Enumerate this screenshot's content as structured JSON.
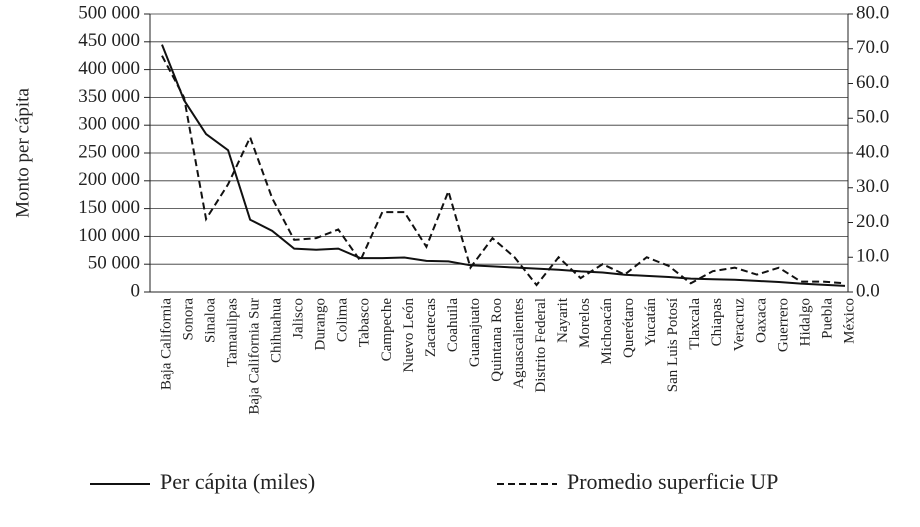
{
  "chart_data": {
    "type": "line",
    "y_label": "Monto per cápita",
    "categories": [
      "Baja California",
      "Sonora",
      "Sinaloa",
      "Tamaulipas",
      "Baja California Sur",
      "Chihuahua",
      "Jalisco",
      "Durango",
      "Colima",
      "Tabasco",
      "Campeche",
      "Nuevo León",
      "Zacatecas",
      "Coahuila",
      "Guanajuato",
      "Quintana Roo",
      "Aguascalientes",
      "Distrito Federal",
      "Nayarit",
      "Morelos",
      "Michoacán",
      "Querétaro",
      "Yucatán",
      "San Luis Potosí",
      "Tlaxcala",
      "Chiapas",
      "Veracruz",
      "Oaxaca",
      "Guerrero",
      "Hidalgo",
      "Puebla",
      "México"
    ],
    "series": [
      {
        "name": "Per cápita (miles)",
        "color": "#111111",
        "dash": false,
        "values": [
          445000,
          345000,
          284000,
          255000,
          130000,
          110000,
          78000,
          76000,
          78000,
          61000,
          61000,
          62000,
          56000,
          55000,
          48000,
          46000,
          44000,
          42000,
          40000,
          37000,
          35000,
          31000,
          29000,
          27000,
          24000,
          23000,
          22000,
          20000,
          18000,
          15000,
          13000,
          11000
        ]
      },
      {
        "name": "Promedio superficie UP",
        "color": "#111111",
        "dash": true,
        "axis": "y2",
        "values": [
          68,
          56,
          21,
          31,
          44.5,
          27,
          15,
          15.5,
          18,
          9,
          23,
          23,
          13,
          29,
          7,
          15.5,
          10,
          2,
          10,
          4,
          8,
          5,
          10,
          7.5,
          2.5,
          6,
          7,
          5,
          7,
          3,
          3,
          2.5
        ]
      }
    ],
    "ylim": [
      0,
      500000
    ],
    "yticks": [
      0,
      {
        "value": 50000,
        "label": "50 000"
      },
      {
        "value": 100000,
        "label": "100 000"
      },
      {
        "value": 150000,
        "label": "150 000"
      },
      {
        "value": 200000,
        "label": "200 000"
      },
      {
        "value": 250000,
        "label": "250 000"
      },
      {
        "value": 300000,
        "label": "300 000"
      },
      {
        "value": 350000,
        "label": "350 000"
      },
      {
        "value": 400000,
        "label": "400 000"
      },
      {
        "value": 450000,
        "label": "450 000"
      },
      {
        "value": 500000,
        "label": "500 000"
      }
    ],
    "y2lim": [
      0,
      80
    ],
    "y2ticks": [
      {
        "value": 0,
        "label": "0.0"
      },
      {
        "value": 10,
        "label": "10.0"
      },
      {
        "value": 20,
        "label": "20.0"
      },
      {
        "value": 30,
        "label": "30.0"
      },
      {
        "value": 40,
        "label": "40.0"
      },
      {
        "value": 50,
        "label": "50.0"
      },
      {
        "value": 60,
        "label": "60.0"
      },
      {
        "value": 70,
        "label": "70.0"
      },
      {
        "value": 80,
        "label": "80.0"
      }
    ],
    "grid": true,
    "legend": "bottom"
  }
}
